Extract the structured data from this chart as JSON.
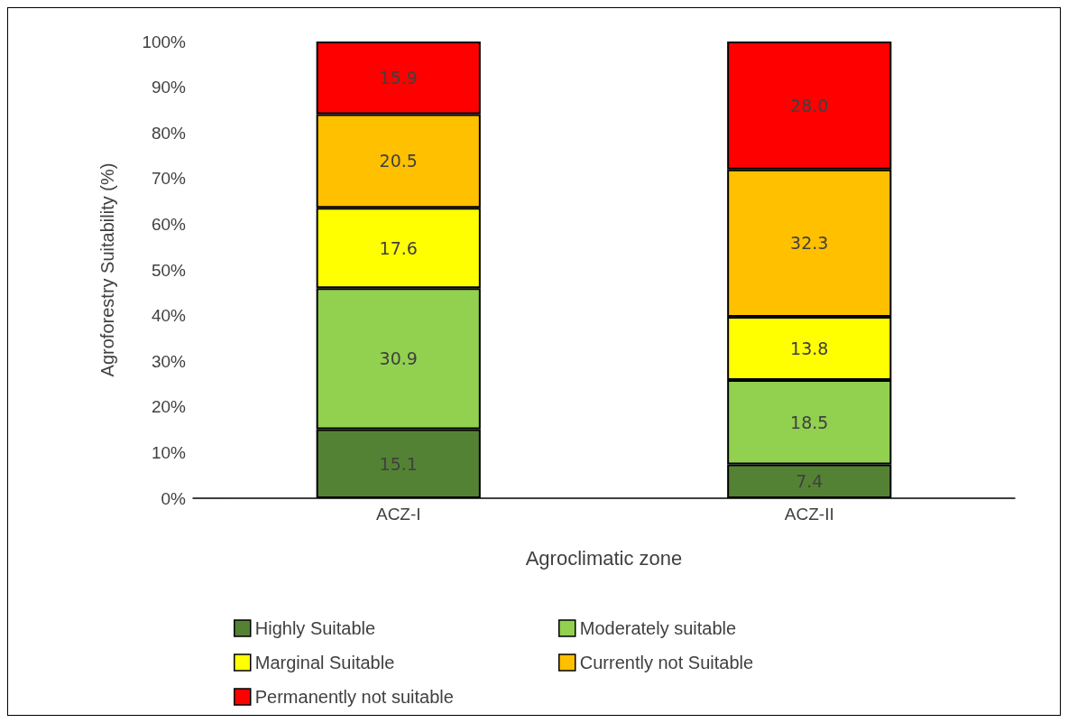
{
  "chart_data": {
    "type": "bar",
    "stacked": true,
    "xlabel": "Agroclimatic zone",
    "ylabel": "Agroforestry Suitability (%)",
    "categories": [
      "ACZ-I",
      "ACZ-II"
    ],
    "series": [
      {
        "name": "Highly Suitable",
        "color": "#548235",
        "values": [
          15.1,
          7.4
        ],
        "value_labels": [
          "15.1",
          "7.4"
        ]
      },
      {
        "name": "Moderately suitable",
        "color": "#92d050",
        "values": [
          30.9,
          18.5
        ],
        "value_labels": [
          "30.9",
          "18.5"
        ]
      },
      {
        "name": "Marginal Suitable",
        "color": "#ffff00",
        "values": [
          17.6,
          13.8
        ],
        "value_labels": [
          "17.6",
          "13.8"
        ]
      },
      {
        "name": "Currently not Suitable",
        "color": "#ffc000",
        "values": [
          20.5,
          32.3
        ],
        "value_labels": [
          "20.5",
          "32.3"
        ]
      },
      {
        "name": "Permanently not suitable",
        "color": "#ff0000",
        "values": [
          15.9,
          28.0
        ],
        "value_labels": [
          "15.9",
          "28.0"
        ]
      }
    ],
    "ylim": [
      0,
      100
    ],
    "yticks": [
      {
        "value": 0,
        "label": "0%"
      },
      {
        "value": 10,
        "label": "10%"
      },
      {
        "value": 20,
        "label": "20%"
      },
      {
        "value": 30,
        "label": "30%"
      },
      {
        "value": 40,
        "label": "40%"
      },
      {
        "value": 50,
        "label": "50%"
      },
      {
        "value": 60,
        "label": "60%"
      },
      {
        "value": 70,
        "label": "70%"
      },
      {
        "value": 80,
        "label": "80%"
      },
      {
        "value": 90,
        "label": "90%"
      },
      {
        "value": 100,
        "label": "100%"
      }
    ],
    "grid": false,
    "legend": "bottom"
  }
}
